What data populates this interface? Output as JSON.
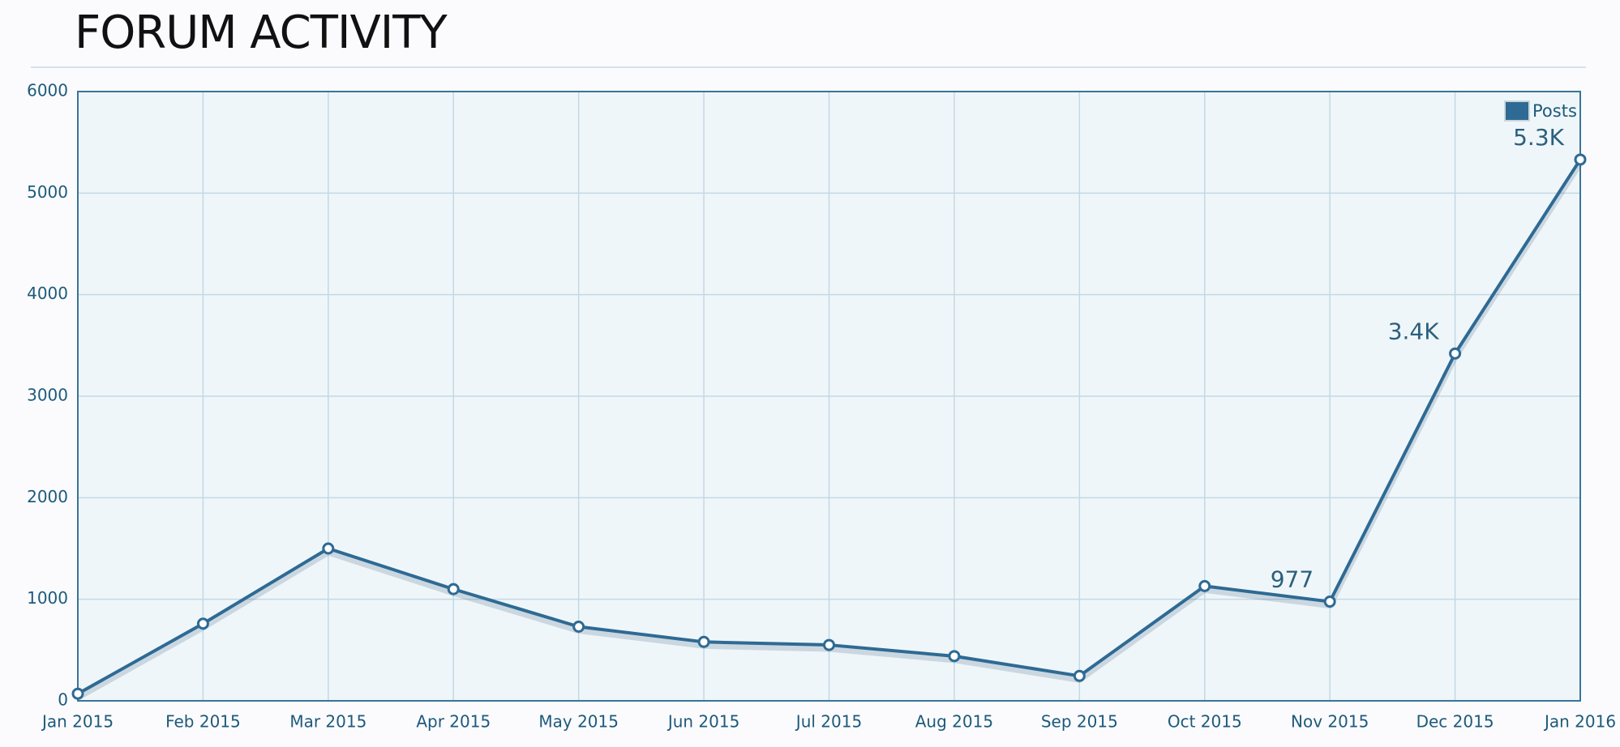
{
  "chart_data": {
    "type": "line",
    "title": "FORUM ACTIVITY",
    "categories": [
      "Jan 2015",
      "Feb 2015",
      "Mar 2015",
      "Apr 2015",
      "May 2015",
      "Jun 2015",
      "Jul 2015",
      "Aug 2015",
      "Sep 2015",
      "Oct 2015",
      "Nov 2015",
      "Dec 2015",
      "Jan 2016"
    ],
    "series": [
      {
        "name": "Posts",
        "color": "#2e6a94",
        "values": [
          70,
          760,
          1500,
          1100,
          730,
          580,
          550,
          440,
          245,
          1130,
          977,
          3420,
          5330
        ],
        "value_labels": [
          null,
          null,
          null,
          null,
          null,
          null,
          null,
          null,
          null,
          null,
          "977",
          "3.4K",
          "5.3K"
        ]
      }
    ],
    "ylim": [
      0,
      6000
    ],
    "yticks": [
      0,
      1000,
      2000,
      3000,
      4000,
      5000,
      6000
    ],
    "grid": true,
    "legend": "top-right"
  }
}
